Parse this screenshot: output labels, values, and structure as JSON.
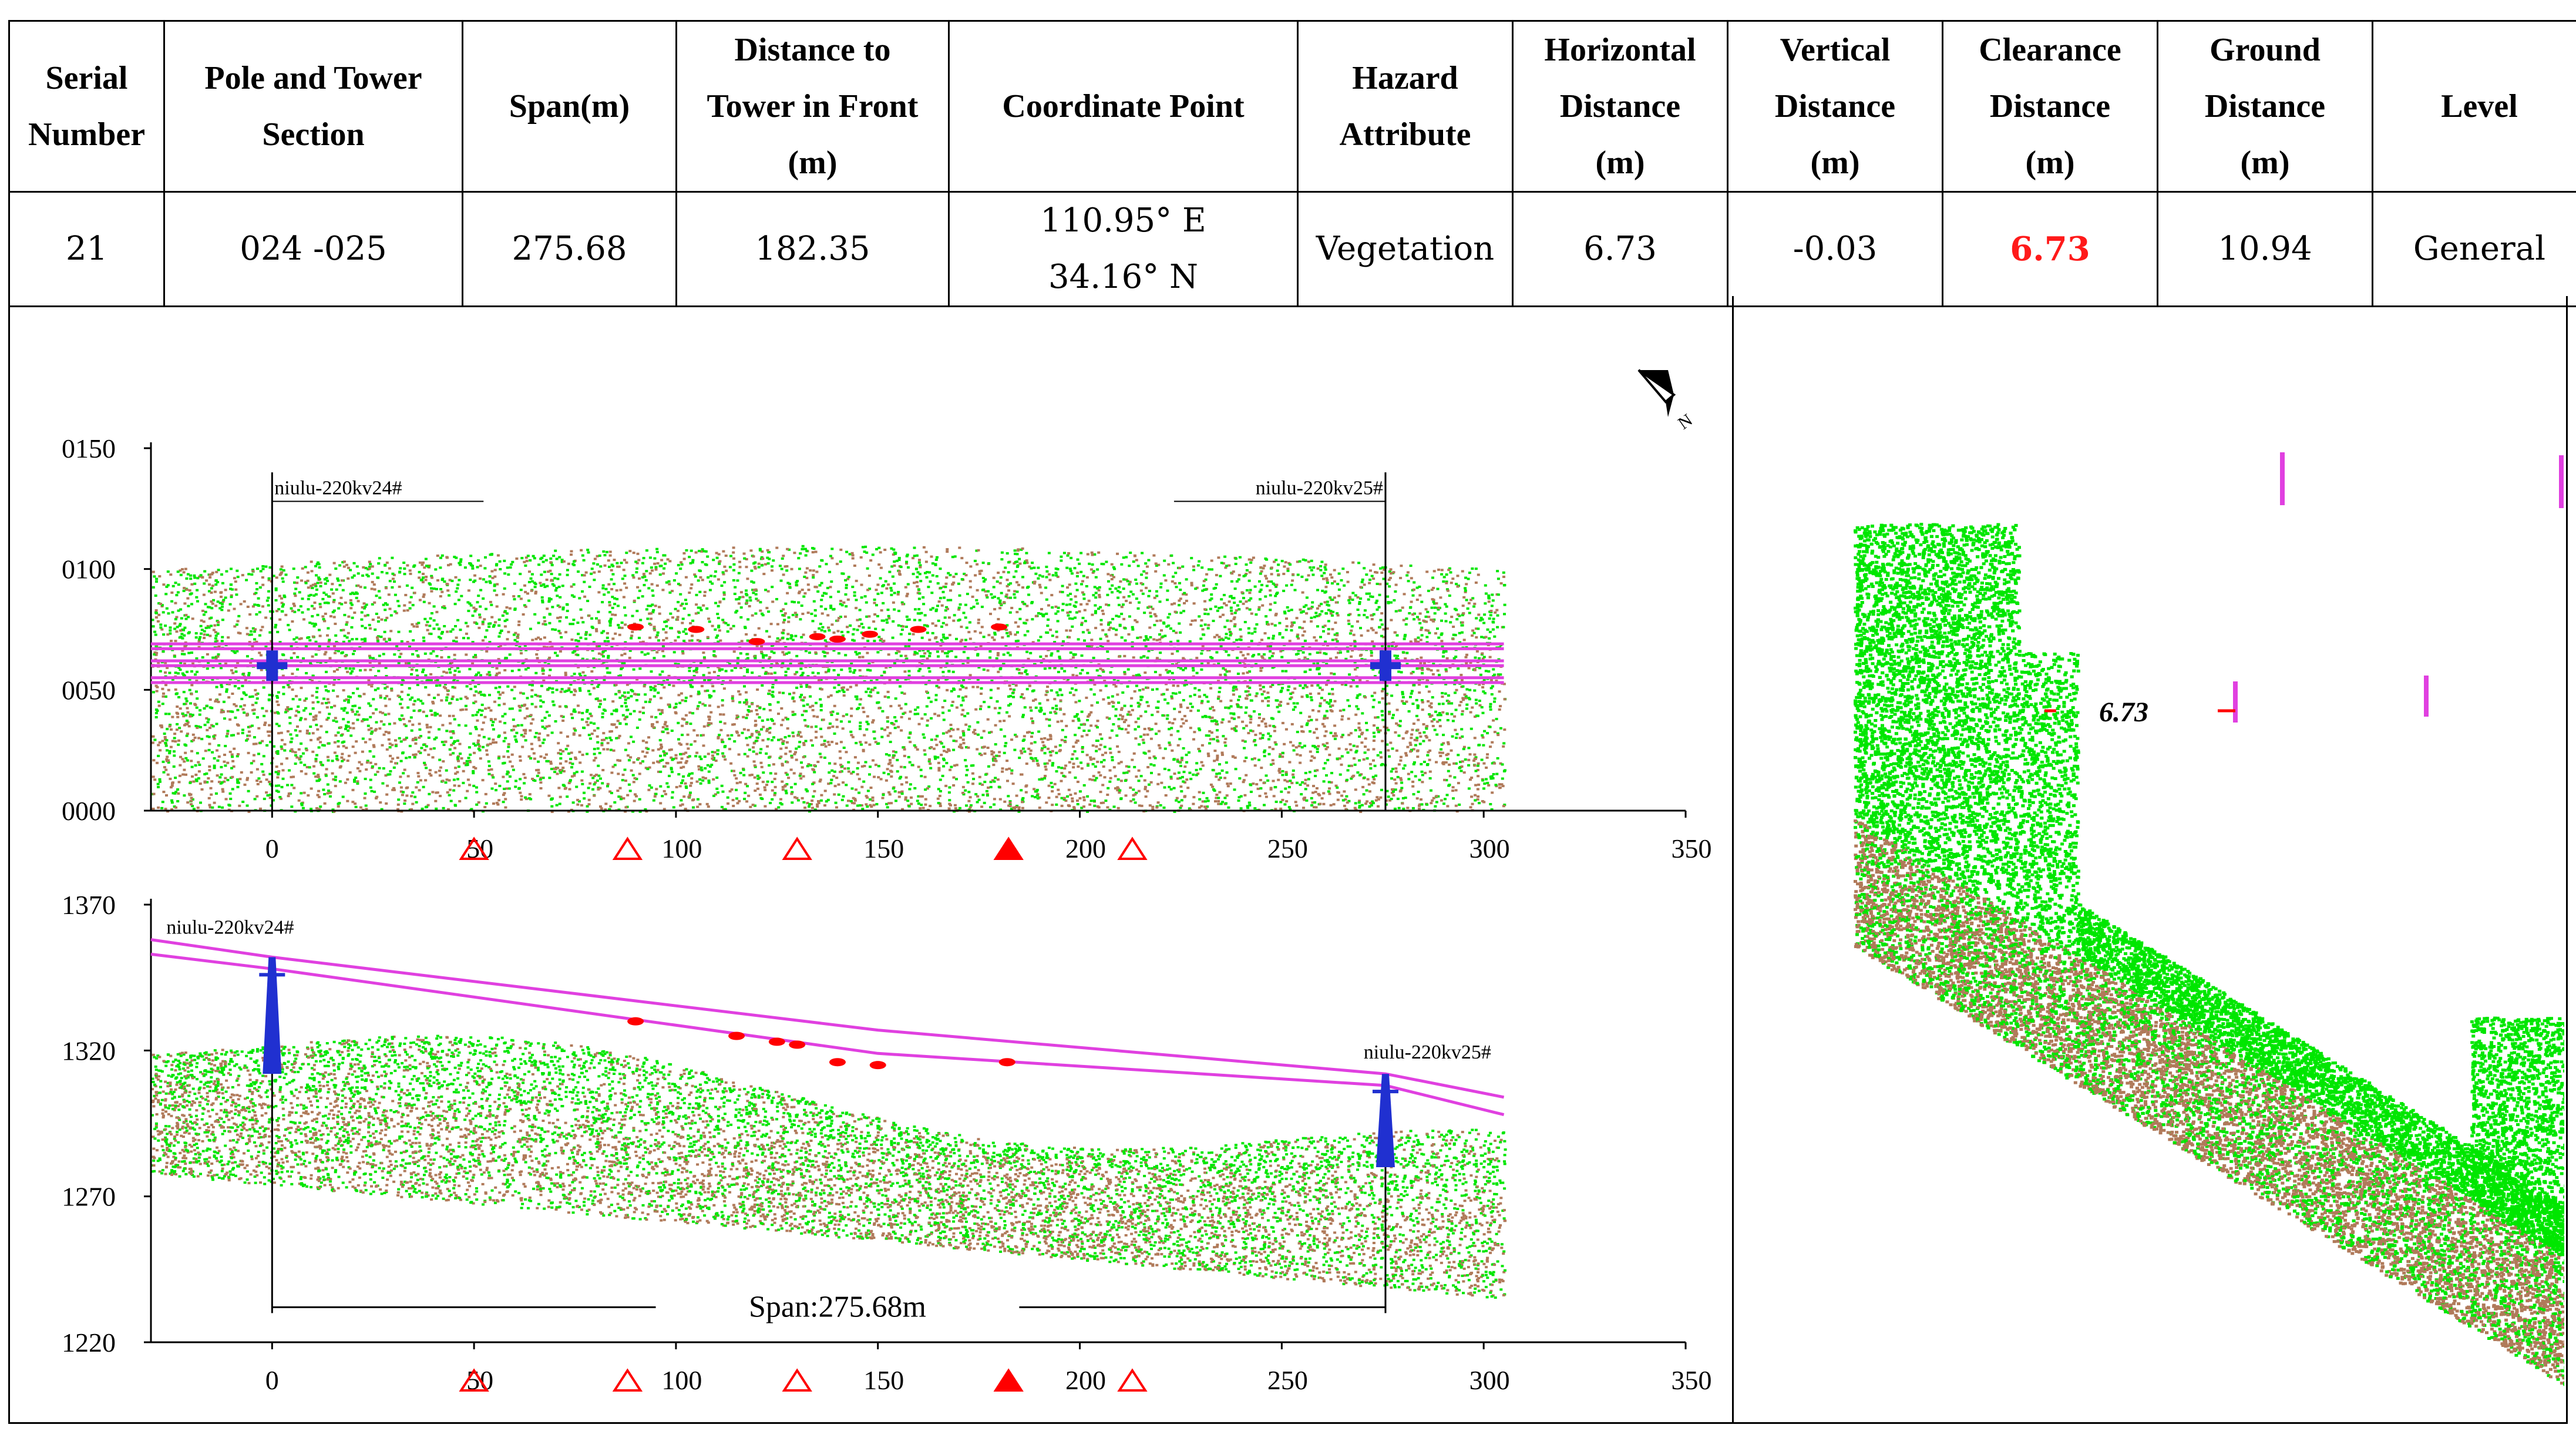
{
  "table": {
    "headers": [
      [
        "Serial",
        "Number"
      ],
      [
        "Pole and Tower",
        "Section"
      ],
      [
        "Span(m)"
      ],
      [
        "Distance to",
        "Tower in Front",
        "(m)"
      ],
      [
        "Coordinate Point"
      ],
      [
        "Hazard",
        "Attribute"
      ],
      [
        "Horizontal",
        "Distance",
        "(m)"
      ],
      [
        "Vertical",
        "Distance",
        "(m)"
      ],
      [
        "Clearance",
        "Distance",
        "(m)"
      ],
      [
        "Ground",
        "Distance",
        "(m)"
      ],
      [
        "Level"
      ]
    ],
    "row": {
      "serial": "21",
      "section": "024 -025",
      "span": "275.68",
      "distance_front": "182.35",
      "coord_lon": "110.95° E",
      "coord_lat": "34.16° N",
      "hazard": "Vegetation",
      "horizontal": "6.73",
      "vertical": "-0.03",
      "clearance": "6.73",
      "ground": "10.94",
      "level": "General"
    }
  },
  "colors": {
    "vegetation": "#00e600",
    "ground": "#b07a5a",
    "conductor": "#e040e0",
    "tower": "#2030d0",
    "hazard": "#ff0000",
    "clearance_text": "#ff1a1a"
  },
  "icons": {
    "north_arrow": "north-arrow-icon",
    "hazard_outline": "hazard-triangle-outline-icon",
    "hazard_filled": "hazard-triangle-filled-icon"
  },
  "chart_data": [
    {
      "type": "scatter",
      "name_hint": "plan-view",
      "title": "",
      "xlabel": "",
      "ylabel": "",
      "xlim": [
        -30,
        350
      ],
      "ylim": [
        0,
        150
      ],
      "x_ticks": [
        "0",
        "50",
        "100",
        "150",
        "200",
        "250",
        "300",
        "350"
      ],
      "y_ticks": [
        "0000",
        "0050",
        "0100",
        "0150"
      ],
      "towers": [
        {
          "label": "niulu-220kv24#",
          "x": 0,
          "y": 60
        },
        {
          "label": "niulu-220kv25#",
          "x": 275.68,
          "y": 60
        }
      ],
      "conductor_lines_y": [
        53,
        55,
        60,
        62,
        67,
        69
      ],
      "hazard_markers": [
        {
          "x": 50,
          "kind": "outline"
        },
        {
          "x": 88,
          "kind": "outline"
        },
        {
          "x": 130,
          "kind": "outline"
        },
        {
          "x": 182.35,
          "kind": "filled"
        },
        {
          "x": 213,
          "kind": "outline"
        }
      ],
      "hazard_points": [
        {
          "x": 105,
          "y": 75
        },
        {
          "x": 120,
          "y": 70
        },
        {
          "x": 135,
          "y": 72
        },
        {
          "x": 140,
          "y": 71
        },
        {
          "x": 148,
          "y": 73
        },
        {
          "x": 180,
          "y": 76
        },
        {
          "x": 90,
          "y": 76
        },
        {
          "x": 160,
          "y": 75
        }
      ]
    },
    {
      "type": "scatter",
      "name_hint": "profile-view",
      "title": "",
      "xlabel": "",
      "ylabel": "",
      "xlim": [
        -30,
        350
      ],
      "ylim": [
        1220,
        1370
      ],
      "x_ticks": [
        "0",
        "50",
        "100",
        "150",
        "200",
        "250",
        "300",
        "350"
      ],
      "y_ticks": [
        "1220",
        "1270",
        "1320",
        "1370"
      ],
      "towers": [
        {
          "label": "niulu-220kv24#",
          "x": 0,
          "base": 1322,
          "top": 1352
        },
        {
          "label": "niulu-220kv25#",
          "x": 275.68,
          "base": 1290,
          "top": 1312
        }
      ],
      "conductor_top": [
        {
          "x": -30,
          "y": 1358
        },
        {
          "x": 0,
          "y": 1352
        },
        {
          "x": 150,
          "y": 1327
        },
        {
          "x": 275.68,
          "y": 1312
        },
        {
          "x": 305,
          "y": 1304
        }
      ],
      "conductor_bottom": [
        {
          "x": -30,
          "y": 1353
        },
        {
          "x": 0,
          "y": 1348
        },
        {
          "x": 150,
          "y": 1319
        },
        {
          "x": 275.68,
          "y": 1308
        },
        {
          "x": 305,
          "y": 1298
        }
      ],
      "span_label": "Span:275.68m",
      "hazard_markers": [
        {
          "x": 50,
          "kind": "outline"
        },
        {
          "x": 88,
          "kind": "outline"
        },
        {
          "x": 130,
          "kind": "outline"
        },
        {
          "x": 182.35,
          "kind": "filled"
        },
        {
          "x": 213,
          "kind": "outline"
        }
      ],
      "hazard_points": [
        {
          "x": 90,
          "y": 1330
        },
        {
          "x": 115,
          "y": 1325
        },
        {
          "x": 130,
          "y": 1322
        },
        {
          "x": 140,
          "y": 1316
        },
        {
          "x": 150,
          "y": 1315
        },
        {
          "x": 182,
          "y": 1316
        },
        {
          "x": 125,
          "y": 1323
        }
      ]
    }
  ],
  "cross_section": {
    "clearance_label": "6.73"
  }
}
